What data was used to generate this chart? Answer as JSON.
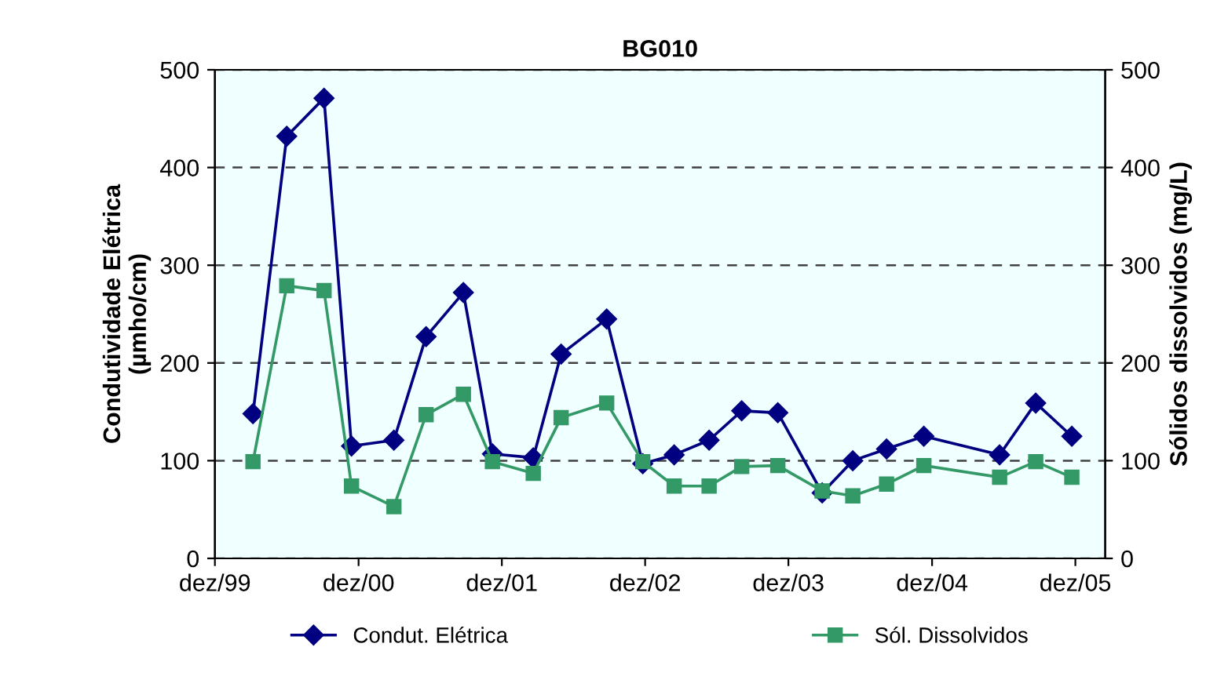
{
  "chart_data": {
    "type": "line",
    "title": "BG010",
    "ylabel": "Condutividade Elétrica\n(µmho/cm)",
    "y2label": "Sólidos dissolvidos (mg/L)",
    "x": [
      "2000-03-07",
      "2000-06-01",
      "2000-09-04",
      "2000-11-13",
      "2001-03-01",
      "2001-05-22",
      "2001-08-25",
      "2001-11-07",
      "2002-02-19",
      "2002-05-01",
      "2002-08-25",
      "2002-11-25",
      "2003-02-13",
      "2003-05-13",
      "2003-08-04",
      "2003-11-04",
      "2004-02-25",
      "2004-05-13",
      "2004-08-07",
      "2004-11-10",
      "2005-05-22",
      "2005-08-22",
      "2005-11-22"
    ],
    "series": [
      {
        "name": "Condut. Elétrica",
        "color": "#000080",
        "marker": "diamond",
        "values": [
          148,
          432,
          471,
          115,
          121,
          227,
          272,
          107,
          103,
          209,
          245,
          97,
          106,
          121,
          151,
          149,
          67,
          100,
          112,
          125,
          106,
          159,
          125
        ]
      },
      {
        "name": "Sól. Dissolvidos",
        "color": "#339966",
        "marker": "square",
        "values": [
          99,
          279,
          274,
          74,
          53,
          147,
          168,
          99,
          87,
          144,
          159,
          99,
          74,
          74,
          94,
          95,
          69,
          64,
          76,
          95,
          83,
          99,
          83
        ]
      }
    ],
    "xlim": [
      "1999-12-01",
      "2006-02-15"
    ],
    "xticks": [
      {
        "value": "1999-12-01",
        "label": "dez/99"
      },
      {
        "value": "2000-12-01",
        "label": "dez/00"
      },
      {
        "value": "2001-12-01",
        "label": "dez/01"
      },
      {
        "value": "2002-12-01",
        "label": "dez/02"
      },
      {
        "value": "2003-12-01",
        "label": "dez/03"
      },
      {
        "value": "2004-12-01",
        "label": "dez/04"
      },
      {
        "value": "2005-12-01",
        "label": "dez/05"
      }
    ],
    "ylim": [
      0,
      500
    ],
    "yticks": [
      0,
      100,
      200,
      300,
      400,
      500
    ],
    "y2lim": [
      0,
      500
    ],
    "y2ticks": [
      0,
      100,
      200,
      300,
      400,
      500
    ],
    "grid": "y",
    "legend": "bottom"
  }
}
